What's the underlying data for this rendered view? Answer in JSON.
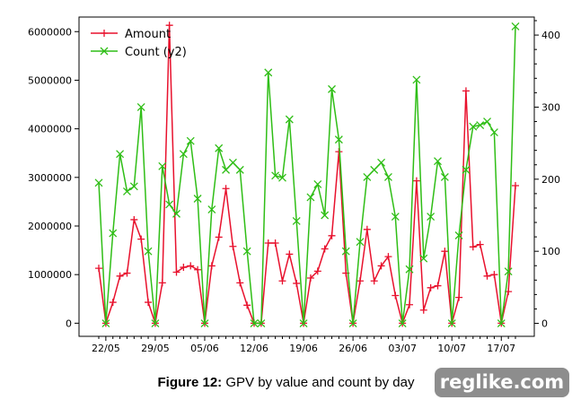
{
  "caption": {
    "label": "Figure 12:",
    "text": "GPV by value and count by day"
  },
  "watermark": "reglike.com",
  "chart_data": {
    "type": "line",
    "x_tick_labels": [
      "22/05",
      "29/05",
      "05/06",
      "12/06",
      "19/06",
      "26/06",
      "03/07",
      "10/07",
      "17/07"
    ],
    "x_tick_index": [
      1,
      8,
      15,
      22,
      29,
      36,
      43,
      50,
      57
    ],
    "y_ticks": [
      0,
      1000000,
      2000000,
      3000000,
      4000000,
      5000000,
      6000000
    ],
    "y_tick_labels": [
      "0",
      "1000000",
      "2000000",
      "3000000",
      "4000000",
      "5000000",
      "6000000"
    ],
    "y2_ticks": [
      0,
      100,
      200,
      300,
      400
    ],
    "y2_tick_labels": [
      "0",
      "100",
      "200",
      "300",
      "400"
    ],
    "ylim": [
      -270000,
      6300000
    ],
    "y2lim": [
      -18,
      425
    ],
    "legend_position": "upper-left",
    "grid": false,
    "series": [
      {
        "name": "Amount",
        "axis": "y",
        "color": "#e8112d",
        "marker": "+",
        "values": [
          1130000,
          0,
          430000,
          970000,
          1030000,
          2130000,
          1730000,
          430000,
          0,
          830000,
          6130000,
          1050000,
          1150000,
          1180000,
          1100000,
          0,
          1180000,
          1770000,
          2770000,
          1580000,
          830000,
          370000,
          0,
          0,
          1650000,
          1650000,
          870000,
          1420000,
          820000,
          0,
          930000,
          1070000,
          1530000,
          1800000,
          3530000,
          1030000,
          0,
          870000,
          1930000,
          870000,
          1180000,
          1370000,
          570000,
          0,
          380000,
          2930000,
          270000,
          730000,
          770000,
          1480000,
          0,
          530000,
          4780000,
          1570000,
          1620000,
          970000,
          1000000,
          0,
          650000,
          2830000
        ]
      },
      {
        "name": "Count (y2)",
        "axis": "y2",
        "color": "#2fbe16",
        "marker": "x",
        "values": [
          195,
          0,
          125,
          235,
          183,
          190,
          300,
          100,
          0,
          218,
          165,
          152,
          235,
          253,
          173,
          0,
          158,
          243,
          213,
          223,
          213,
          100,
          0,
          0,
          348,
          205,
          202,
          283,
          142,
          0,
          175,
          193,
          150,
          325,
          255,
          100,
          0,
          113,
          203,
          213,
          223,
          203,
          148,
          0,
          75,
          338,
          90,
          148,
          225,
          203,
          0,
          122,
          213,
          273,
          275,
          280,
          265,
          0,
          72,
          412
        ]
      }
    ]
  }
}
